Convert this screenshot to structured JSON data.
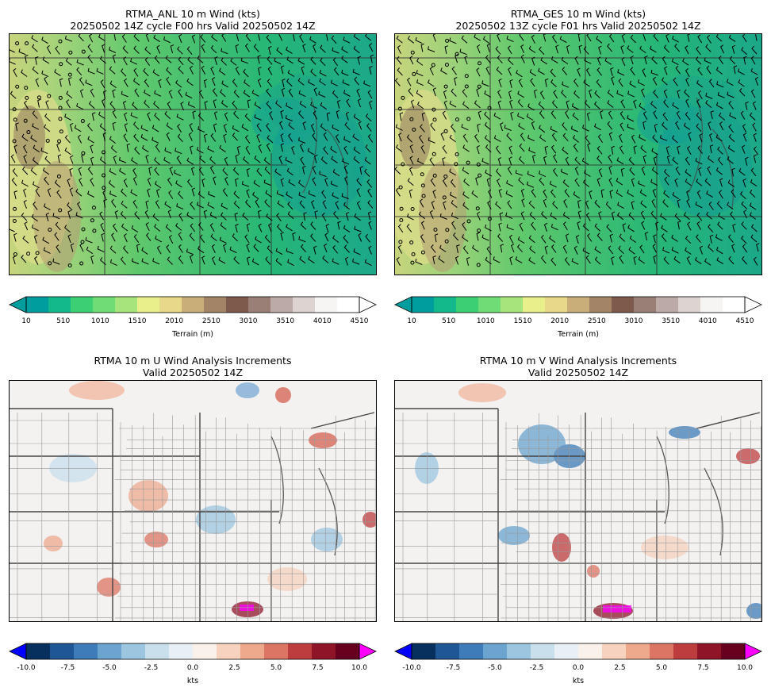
{
  "panels": {
    "anl": {
      "title_line1": "RTMA_ANL 10 m Wind (kts)",
      "title_line2": "20250502 14Z cycle F00 hrs Valid 20250502 14Z"
    },
    "ges": {
      "title_line1": "RTMA_GES 10 m Wind (kts)",
      "title_line2": "20250502 13Z cycle F01 hrs Valid 20250502 14Z"
    },
    "u_inc": {
      "title_line1": "RTMA 10 m U Wind Analysis Increments",
      "title_line2": "Valid 20250502 14Z"
    },
    "v_inc": {
      "title_line1": "RTMA 10 m V Wind Analysis Increments",
      "title_line2": "Valid 20250502 14Z"
    }
  },
  "terrain_colorbar": {
    "label": "Terrain (m)",
    "ticks": [
      "10",
      "510",
      "1010",
      "1510",
      "2010",
      "2510",
      "3010",
      "3510",
      "4010",
      "4510"
    ],
    "colors": [
      "#009d9f",
      "#13b98a",
      "#3ccf74",
      "#6fdc75",
      "#a6e57c",
      "#e8f08c",
      "#e8d889",
      "#c9ae79",
      "#a48466",
      "#7e5a4d",
      "#9a7f77",
      "#bcaaa6",
      "#ddd3d1",
      "#f7f5f4",
      "#ffffff"
    ]
  },
  "increment_colorbar": {
    "label": "kts",
    "ticks": [
      "-10.0",
      "-7.5",
      "-5.0",
      "-2.5",
      "0.0",
      "2.5",
      "5.0",
      "7.5",
      "10.0"
    ],
    "under_color": "#0000ff",
    "over_color": "#ff00ff",
    "colors": [
      "#08305e",
      "#1f5796",
      "#3d7cb8",
      "#6aa4cf",
      "#9cc6e0",
      "#c9dfec",
      "#e9f0f5",
      "#fbf1eb",
      "#f6d2bf",
      "#eea98d",
      "#dc7564",
      "#bd3d3f",
      "#8f1428",
      "#67001f"
    ]
  }
}
